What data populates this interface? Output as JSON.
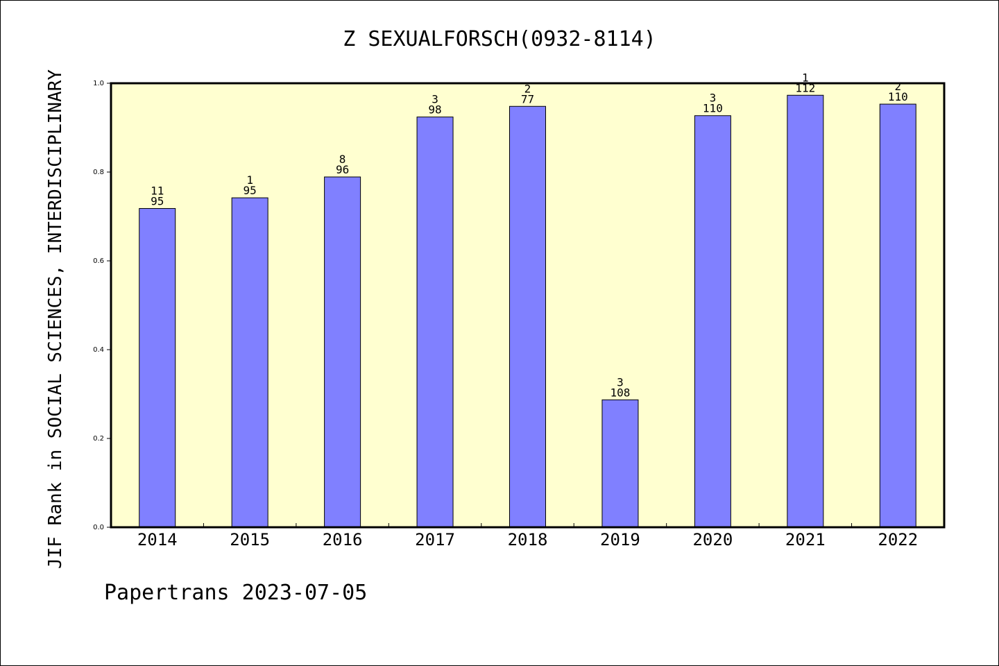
{
  "chart_data": {
    "type": "bar",
    "title": "Z SEXUALFORSCH(0932-8114)",
    "ylabel": "JIF Rank in SOCIAL SCIENCES, INTERDISCIPLINARY",
    "footer": "Papertrans 2023-07-05",
    "categories": [
      "2014",
      "2015",
      "2016",
      "2017",
      "2018",
      "2019",
      "2020",
      "2021",
      "2022"
    ],
    "values": [
      0.718,
      0.742,
      0.789,
      0.924,
      0.948,
      0.287,
      0.927,
      0.973,
      0.953
    ],
    "labels_rank": [
      "11",
      "1",
      "8",
      "3",
      "2",
      "3",
      "3",
      "1",
      "2"
    ],
    "labels_total": [
      "95",
      "95",
      "96",
      "98",
      "77",
      "108",
      "110",
      "112",
      "110"
    ],
    "yticks": [
      "0.0",
      "0.2",
      "0.4",
      "0.6",
      "0.8",
      "1.0"
    ],
    "ylim": [
      0,
      1.0
    ],
    "colors": {
      "bar": "#8080ff",
      "plot_background": "#ffffd0",
      "axis": "#000000"
    }
  }
}
